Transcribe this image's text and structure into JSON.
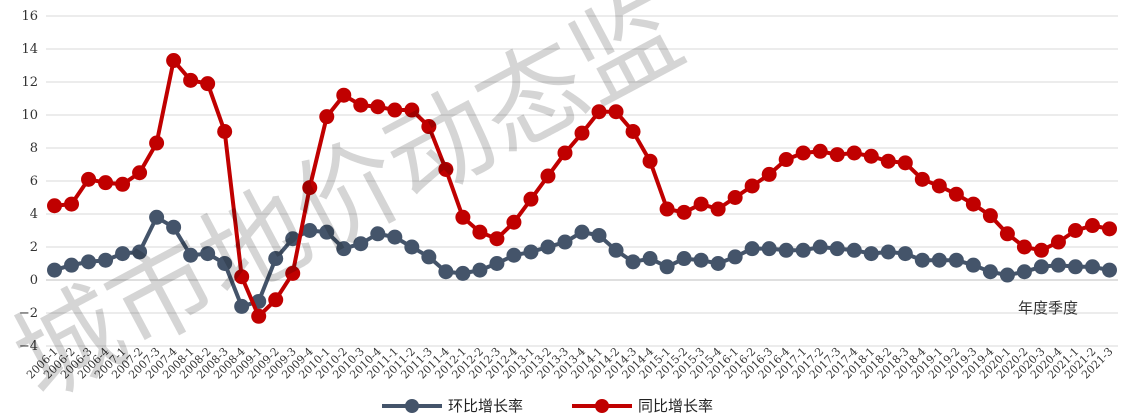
{
  "chart_data": {
    "type": "line",
    "xlabel": "年度季度",
    "ylim": [
      -4,
      16
    ],
    "yticks": [
      -4,
      -2,
      0,
      2,
      4,
      6,
      8,
      10,
      12,
      14,
      16
    ],
    "grid": "horizontal",
    "legend": "bottom-center",
    "watermark": "城市地价动态监",
    "categories": [
      "2006-1",
      "2006-2",
      "2006-3",
      "2006-4",
      "2007-1",
      "2007-2",
      "2007-3",
      "2007-4",
      "2008-1",
      "2008-2",
      "2008-3",
      "2008-4",
      "2009-1",
      "2009-2",
      "2009-3",
      "2009-4",
      "2010-1",
      "2010-2",
      "2010-3",
      "2010-4",
      "2011-1",
      "2011-2",
      "2011-3",
      "2011-4",
      "2012-1",
      "2012-2",
      "2012-3",
      "2012-4",
      "2013-1",
      "2013-2",
      "2013-3",
      "2013-4",
      "2014-1",
      "2014-2",
      "2014-3",
      "2014-4",
      "2015-1",
      "2015-2",
      "2015-3",
      "2015-4",
      "2016-1",
      "2016-2",
      "2016-3",
      "2016-4",
      "2017-1",
      "2017-2",
      "2017-3",
      "2017-4",
      "2018-1",
      "2018-2",
      "2018-3",
      "2018-4",
      "2019-1",
      "2019-2",
      "2019-3",
      "2019-4",
      "2020-1",
      "2020-2",
      "2020-3",
      "2020-4",
      "2021-1",
      "2021-2",
      "2021-3"
    ],
    "series": [
      {
        "name": "环比增长率",
        "color": "#44546A",
        "values": [
          0.6,
          0.9,
          1.1,
          1.2,
          1.6,
          1.7,
          3.8,
          3.2,
          1.5,
          1.6,
          1.0,
          -1.6,
          -1.3,
          1.3,
          2.5,
          3.0,
          2.9,
          1.9,
          2.2,
          2.8,
          2.6,
          2.0,
          1.4,
          0.5,
          0.4,
          0.6,
          1.0,
          1.5,
          1.7,
          2.0,
          2.3,
          2.9,
          2.7,
          1.8,
          1.1,
          1.3,
          0.8,
          1.3,
          1.2,
          1.0,
          1.4,
          1.9,
          1.9,
          1.8,
          1.8,
          2.0,
          1.9,
          1.8,
          1.6,
          1.7,
          1.6,
          1.2,
          1.2,
          1.2,
          0.9,
          0.5,
          0.3,
          0.5,
          0.8,
          0.9,
          0.8,
          0.8,
          0.6
        ]
      },
      {
        "name": "同比增长率",
        "color": "#C00000",
        "values": [
          4.5,
          4.6,
          6.1,
          5.9,
          5.8,
          6.5,
          8.3,
          13.3,
          12.1,
          11.9,
          9.0,
          0.2,
          -2.2,
          -1.2,
          0.4,
          5.6,
          9.9,
          11.2,
          10.6,
          10.5,
          10.3,
          10.3,
          9.3,
          6.7,
          3.8,
          2.9,
          2.5,
          3.5,
          4.9,
          6.3,
          7.7,
          8.9,
          10.2,
          10.2,
          9.0,
          7.2,
          4.3,
          4.1,
          4.6,
          4.3,
          5.0,
          5.7,
          6.4,
          7.3,
          7.7,
          7.8,
          7.6,
          7.7,
          7.5,
          7.2,
          7.1,
          6.1,
          5.7,
          5.2,
          4.6,
          3.9,
          2.8,
          2.0,
          1.8,
          2.3,
          3.0,
          3.3,
          3.1
        ]
      }
    ]
  }
}
